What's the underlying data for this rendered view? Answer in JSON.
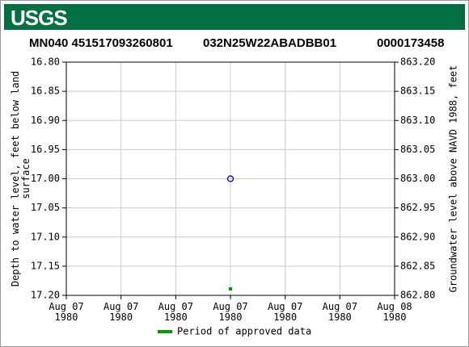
{
  "header": {
    "logo": "USGS"
  },
  "chart_data": {
    "type": "scatter",
    "title_parts": [
      "MN040 451517093260801",
      "032N25W22ABADBB01",
      "0000173458"
    ],
    "y_label_lines": [
      "Depth to water level, feet below land",
      "surface"
    ],
    "y2_label": "Groundwater level above NAVD 1988, feet",
    "ylim": [
      16.8,
      17.2
    ],
    "y_inverted": true,
    "yticks": [
      {
        "value": 16.8,
        "label": "16.80"
      },
      {
        "value": 16.85,
        "label": "16.85"
      },
      {
        "value": 16.9,
        "label": "16.90"
      },
      {
        "value": 16.95,
        "label": "16.95"
      },
      {
        "value": 17.0,
        "label": "17.00"
      },
      {
        "value": 17.05,
        "label": "17.05"
      },
      {
        "value": 17.1,
        "label": "17.10"
      },
      {
        "value": 17.15,
        "label": "17.15"
      },
      {
        "value": 17.2,
        "label": "17.20"
      }
    ],
    "y2lim": [
      862.8,
      863.2
    ],
    "y2ticks": [
      {
        "value": 863.2,
        "label": "863.20"
      },
      {
        "value": 863.15,
        "label": "863.15"
      },
      {
        "value": 863.1,
        "label": "863.10"
      },
      {
        "value": 863.05,
        "label": "863.05"
      },
      {
        "value": 863.0,
        "label": "863.00"
      },
      {
        "value": 862.95,
        "label": "862.95"
      },
      {
        "value": 862.9,
        "label": "862.90"
      },
      {
        "value": 862.85,
        "label": "862.85"
      },
      {
        "value": 862.8,
        "label": "862.80"
      }
    ],
    "xlim": [
      0,
      24
    ],
    "xticks": [
      {
        "value": 0,
        "label": "Aug 07\n1980"
      },
      {
        "value": 4,
        "label": "Aug 07\n1980"
      },
      {
        "value": 8,
        "label": "Aug 07\n1980"
      },
      {
        "value": 12,
        "label": "Aug 07\n1980"
      },
      {
        "value": 16,
        "label": "Aug 07\n1980"
      },
      {
        "value": 20,
        "label": "Aug 07\n1980"
      },
      {
        "value": 24,
        "label": "Aug 08\n1980"
      }
    ],
    "grid": true,
    "series": [
      {
        "color": "#0000cc",
        "x": [
          12
        ],
        "values": [
          17.0
        ]
      }
    ],
    "approved_periods": {
      "name": "Period of approved data",
      "color": "#009900",
      "x": [
        12
      ]
    }
  }
}
